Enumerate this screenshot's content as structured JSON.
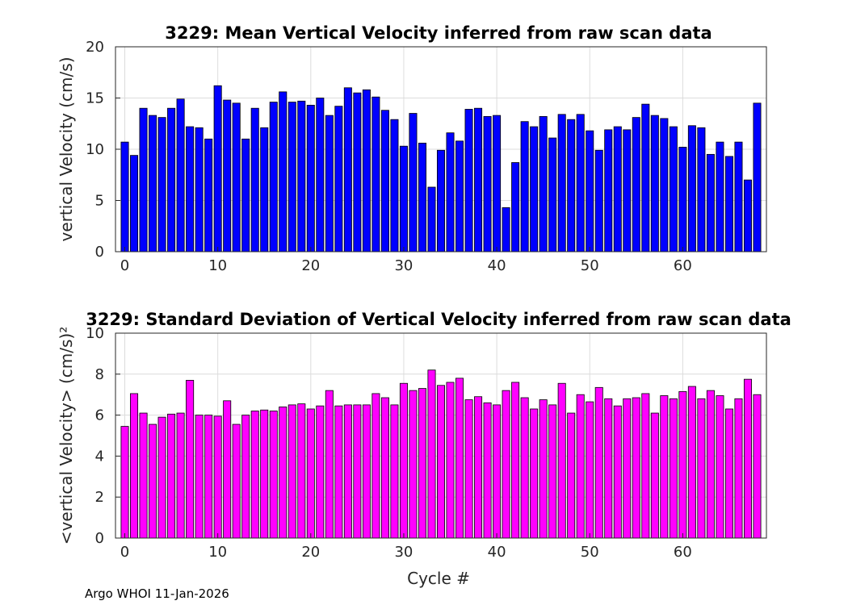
{
  "chart_data": [
    {
      "type": "bar",
      "title": "3229: Mean Vertical Velocity inferred from raw scan data",
      "xlabel": "",
      "ylabel": "vertical Velocity (cm/s)",
      "color": "#0000ff",
      "xlim": [
        -1,
        69
      ],
      "ylim": [
        0,
        20
      ],
      "xticks": [
        0,
        10,
        20,
        30,
        40,
        50,
        60
      ],
      "yticks": [
        0,
        5,
        10,
        15,
        20
      ],
      "grid": true,
      "x": [
        0,
        1,
        2,
        3,
        4,
        5,
        6,
        7,
        8,
        9,
        10,
        11,
        12,
        13,
        14,
        15,
        16,
        17,
        18,
        19,
        20,
        21,
        22,
        23,
        24,
        25,
        26,
        27,
        28,
        29,
        30,
        31,
        32,
        33,
        34,
        35,
        36,
        37,
        38,
        39,
        40,
        41,
        42,
        43,
        44,
        45,
        46,
        47,
        48,
        49,
        50,
        51,
        52,
        53,
        54,
        55,
        56,
        57,
        58,
        59,
        60,
        61,
        62,
        63,
        64,
        65,
        66,
        67,
        68
      ],
      "values": [
        10.7,
        9.4,
        14.0,
        13.3,
        13.1,
        14.0,
        14.9,
        12.2,
        12.1,
        11.0,
        16.2,
        14.8,
        14.5,
        11.0,
        14.0,
        12.1,
        14.6,
        15.6,
        14.6,
        14.7,
        14.3,
        15.0,
        13.3,
        14.2,
        16.0,
        15.5,
        15.8,
        15.1,
        13.8,
        12.9,
        10.3,
        13.5,
        10.6,
        6.3,
        9.9,
        11.6,
        10.8,
        13.9,
        14.0,
        13.2,
        13.3,
        4.3,
        8.7,
        12.7,
        12.2,
        13.2,
        11.1,
        13.4,
        12.9,
        13.4,
        11.8,
        9.9,
        11.9,
        12.2,
        11.9,
        13.1,
        14.4,
        13.3,
        13.0,
        12.2,
        10.2,
        12.3,
        12.1,
        9.5,
        10.7,
        9.3,
        10.7,
        7.0,
        14.5
      ]
    },
    {
      "type": "bar",
      "title": "3229: Standard Deviation of Vertical Velocity inferred from raw scan data",
      "xlabel": "Cycle #",
      "ylabel": "<vertical Velocity> (cm/s)²",
      "color": "#ff00ff",
      "xlim": [
        -1,
        69
      ],
      "ylim": [
        0,
        10
      ],
      "xticks": [
        0,
        10,
        20,
        30,
        40,
        50,
        60
      ],
      "yticks": [
        0,
        2,
        4,
        6,
        8,
        10
      ],
      "grid": true,
      "x": [
        0,
        1,
        2,
        3,
        4,
        5,
        6,
        7,
        8,
        9,
        10,
        11,
        12,
        13,
        14,
        15,
        16,
        17,
        18,
        19,
        20,
        21,
        22,
        23,
        24,
        25,
        26,
        27,
        28,
        29,
        30,
        31,
        32,
        33,
        34,
        35,
        36,
        37,
        38,
        39,
        40,
        41,
        42,
        43,
        44,
        45,
        46,
        47,
        48,
        49,
        50,
        51,
        52,
        53,
        54,
        55,
        56,
        57,
        58,
        59,
        60,
        61,
        62,
        63,
        64,
        65,
        66,
        67,
        68
      ],
      "values": [
        5.45,
        7.05,
        6.1,
        5.55,
        5.9,
        6.05,
        6.1,
        7.7,
        6.0,
        6.0,
        5.95,
        6.7,
        5.55,
        6.0,
        6.2,
        6.25,
        6.2,
        6.4,
        6.5,
        6.55,
        6.3,
        6.45,
        7.2,
        6.45,
        6.5,
        6.5,
        6.5,
        7.05,
        6.85,
        6.5,
        7.55,
        7.2,
        7.3,
        8.2,
        7.45,
        7.6,
        7.8,
        6.75,
        6.9,
        6.6,
        6.5,
        7.2,
        7.6,
        6.85,
        6.3,
        6.75,
        6.5,
        7.55,
        6.1,
        7.0,
        6.65,
        7.35,
        6.8,
        6.45,
        6.8,
        6.85,
        7.05,
        6.1,
        6.95,
        6.8,
        7.15,
        7.4,
        6.8,
        7.2,
        6.95,
        6.3,
        6.8,
        7.75,
        7.0
      ]
    }
  ],
  "footer": "Argo WHOI 11-Jan-2026"
}
